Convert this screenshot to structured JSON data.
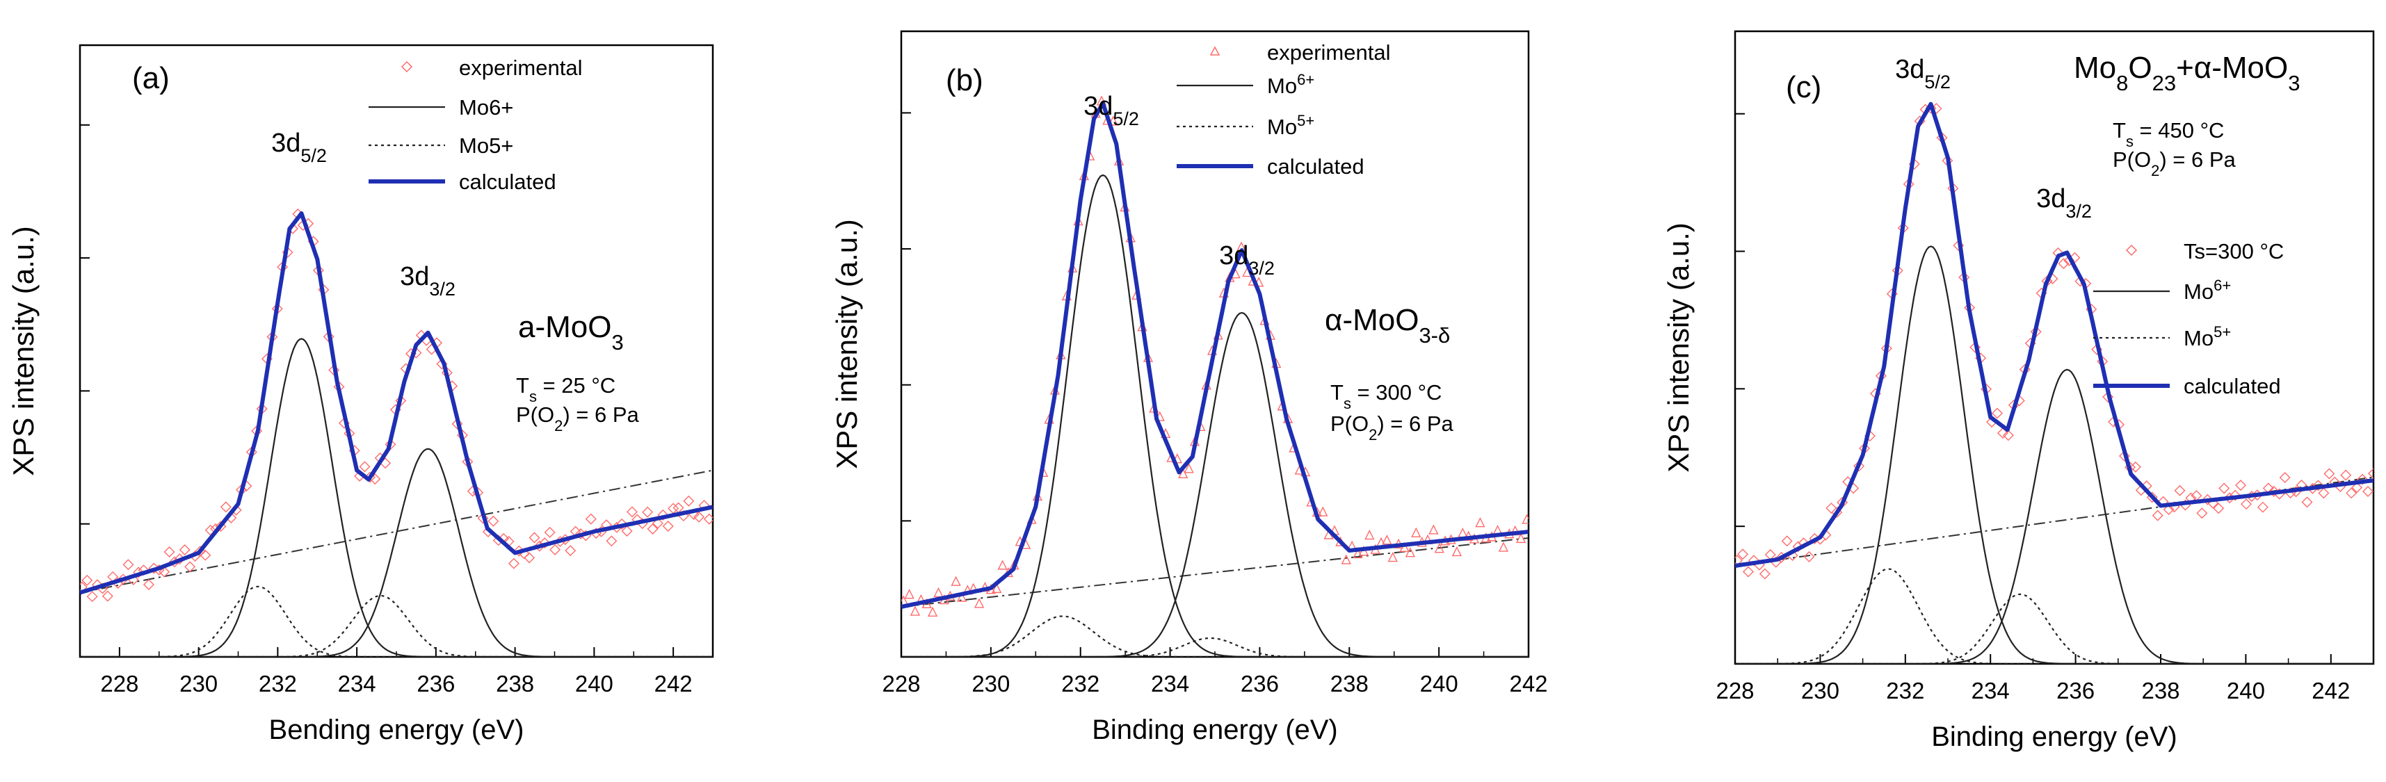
{
  "chart_data": [
    {
      "type": "line",
      "panel_label": "(a)",
      "xlabel": "Bending energy (eV)",
      "ylabel": "XPS intensity (a.u.)",
      "xlim": [
        227,
        243
      ],
      "ylim": [
        0,
        100
      ],
      "x_ticks": [
        228,
        230,
        232,
        234,
        236,
        238,
        240,
        242
      ],
      "legend": [
        {
          "label": "experimental",
          "style": "marker",
          "marker": "diamond",
          "color": "#ff6b6b"
        },
        {
          "label": "Mo6+",
          "style": "solid",
          "color": "#222222"
        },
        {
          "label": "Mo5+",
          "style": "dotted",
          "color": "#222222"
        },
        {
          "label": "calculated",
          "style": "thick",
          "color": "#1f2fb3"
        }
      ],
      "sample": {
        "name": "a-MoO",
        "sub": "3",
        "suffix": ""
      },
      "conditions": [
        {
          "parts": [
            [
              "T",
              ""
            ],
            [
              "s",
              "sub"
            ],
            [
              " = 25 °C",
              ""
            ]
          ]
        },
        {
          "parts": [
            [
              "P(O",
              ""
            ],
            [
              "2",
              "sub"
            ],
            [
              ") = 6 Pa",
              ""
            ]
          ]
        }
      ],
      "peak_labels": [
        {
          "main": "3d",
          "sub": "5/2"
        },
        {
          "main": "3d",
          "sub": "3/2"
        }
      ],
      "baseline": {
        "x": [
          227,
          243
        ],
        "y": [
          10.5,
          30.5
        ]
      },
      "components": [
        {
          "name": "Mo6+",
          "style": "solid",
          "center": 232.6,
          "height": 52,
          "sigma": 0.78
        },
        {
          "name": "Mo6+",
          "style": "solid",
          "center": 235.8,
          "height": 34,
          "sigma": 0.78
        },
        {
          "name": "Mo5+",
          "style": "dotted",
          "center": 231.5,
          "height": 11.5,
          "sigma": 0.7
        },
        {
          "name": "Mo5+",
          "style": "dotted",
          "center": 234.6,
          "height": 10,
          "sigma": 0.7
        }
      ],
      "calculated": {
        "x": [
          227,
          229,
          230,
          231,
          231.5,
          232,
          232.3,
          232.6,
          233,
          233.5,
          234,
          234.3,
          234.8,
          235.2,
          235.5,
          235.8,
          236.2,
          236.8,
          237.3,
          238,
          240,
          243
        ],
        "y": [
          10.5,
          14.5,
          17,
          25,
          37,
          58,
          70,
          72.5,
          65,
          45,
          30.5,
          29,
          34,
          45,
          51,
          53,
          48,
          32,
          21,
          17,
          20.5,
          24.5
        ]
      },
      "experimental_markers": "along calculated curve"
    },
    {
      "type": "line",
      "panel_label": "(b)",
      "xlabel": "Binding energy (eV)",
      "ylabel": "XPS intensity (a.u.)",
      "xlim": [
        228,
        242
      ],
      "ylim": [
        0,
        100
      ],
      "x_ticks": [
        228,
        230,
        232,
        234,
        236,
        238,
        240,
        242
      ],
      "legend": [
        {
          "label": "experimental",
          "style": "marker",
          "marker": "triangle",
          "color": "#ff6b6b"
        },
        {
          "label": "Mo6+",
          "style": "solid",
          "color": "#222222"
        },
        {
          "label": "Mo5+",
          "style": "dotted",
          "color": "#222222"
        },
        {
          "label": "calculated",
          "style": "thick",
          "color": "#1f2fb3"
        }
      ],
      "sample": {
        "name": "α-MoO",
        "sub": "3-δ",
        "suffix": ""
      },
      "conditions": [
        {
          "parts": [
            [
              "T",
              ""
            ],
            [
              "s",
              "sub"
            ],
            [
              " = 300 °C",
              ""
            ]
          ]
        },
        {
          "parts": [
            [
              "P(O",
              ""
            ],
            [
              "2",
              "sub"
            ],
            [
              ") = 6 Pa",
              ""
            ]
          ]
        }
      ],
      "peak_labels": [
        {
          "main": "3d",
          "sub": "5/2"
        },
        {
          "main": "3d",
          "sub": "3/2"
        }
      ],
      "baseline": {
        "x": [
          228,
          242
        ],
        "y": [
          8,
          19
        ]
      },
      "components": [
        {
          "name": "Mo6+",
          "style": "solid",
          "center": 232.5,
          "height": 77,
          "sigma": 0.78
        },
        {
          "name": "Mo6+",
          "style": "solid",
          "center": 235.6,
          "height": 55,
          "sigma": 0.78
        },
        {
          "name": "Mo5+",
          "style": "dotted",
          "center": 231.6,
          "height": 6.5,
          "sigma": 0.7
        },
        {
          "name": "Mo5+",
          "style": "dotted",
          "center": 234.9,
          "height": 3,
          "sigma": 0.6
        }
      ],
      "calculated": {
        "x": [
          228,
          229,
          230,
          230.5,
          231,
          231.5,
          232,
          232.3,
          232.5,
          232.8,
          233.2,
          233.7,
          234.2,
          234.5,
          234.9,
          235.3,
          235.6,
          236,
          236.6,
          237.3,
          238,
          240,
          242
        ],
        "y": [
          8,
          9.5,
          11,
          14,
          24,
          45,
          73,
          86,
          88.5,
          82,
          62,
          38,
          29.5,
          32,
          46,
          60,
          65,
          58,
          38,
          22,
          17,
          18.5,
          20
        ]
      },
      "experimental_markers": "along calculated curve"
    },
    {
      "type": "line",
      "panel_label": "(c)",
      "xlabel": "Binding energy (eV)",
      "ylabel": "XPS intensity (a.u.)",
      "xlim": [
        228,
        243
      ],
      "ylim": [
        0,
        100
      ],
      "x_ticks": [
        228,
        230,
        232,
        234,
        236,
        238,
        240,
        242
      ],
      "legend": [
        {
          "label": "Ts=300 °C",
          "style": "marker",
          "marker": "diamond",
          "color": "#ff6b6b"
        },
        {
          "label": "Mo6+",
          "style": "solid",
          "color": "#222222"
        },
        {
          "label": "Mo5+",
          "style": "dotted",
          "color": "#222222"
        },
        {
          "label": "calculated",
          "style": "thick",
          "color": "#1f2fb3"
        }
      ],
      "sample": {
        "name": "Mo",
        "sub": "8",
        "name2": "O",
        "sub2": "23",
        "suffix": "+α-MoO",
        "sub3": "3"
      },
      "conditions": [
        {
          "parts": [
            [
              "T",
              ""
            ],
            [
              "s",
              "sub"
            ],
            [
              " = 450 °C",
              ""
            ]
          ]
        },
        {
          "parts": [
            [
              "P(O",
              ""
            ],
            [
              "2",
              "sub"
            ],
            [
              ") = 6 Pa",
              ""
            ]
          ]
        }
      ],
      "peak_labels": [
        {
          "main": "3d",
          "sub": "5/2"
        },
        {
          "main": "3d",
          "sub": "3/2"
        }
      ],
      "baseline": {
        "x": [
          228,
          243
        ],
        "y": [
          15.5,
          29.5
        ]
      },
      "components": [
        {
          "name": "Mo6+",
          "style": "solid",
          "center": 232.6,
          "height": 66,
          "sigma": 0.78
        },
        {
          "name": "Mo6+",
          "style": "solid",
          "center": 235.8,
          "height": 46.5,
          "sigma": 0.78
        },
        {
          "name": "Mo5+",
          "style": "dotted",
          "center": 231.6,
          "height": 15,
          "sigma": 0.7
        },
        {
          "name": "Mo5+",
          "style": "dotted",
          "center": 234.7,
          "height": 11,
          "sigma": 0.65
        }
      ],
      "calculated": {
        "x": [
          228,
          229,
          230,
          230.5,
          231,
          231.5,
          232,
          232.3,
          232.6,
          233,
          233.5,
          234,
          234.4,
          234.9,
          235.3,
          235.6,
          235.8,
          236.2,
          236.8,
          237.3,
          238,
          240,
          243
        ],
        "y": [
          15.5,
          16.5,
          20,
          25,
          33,
          47,
          72,
          85,
          88.5,
          80,
          56,
          39,
          37,
          48,
          60,
          64.5,
          65,
          60,
          42,
          30,
          25,
          26.5,
          29
        ]
      },
      "experimental_markers": "along calculated curve"
    }
  ]
}
